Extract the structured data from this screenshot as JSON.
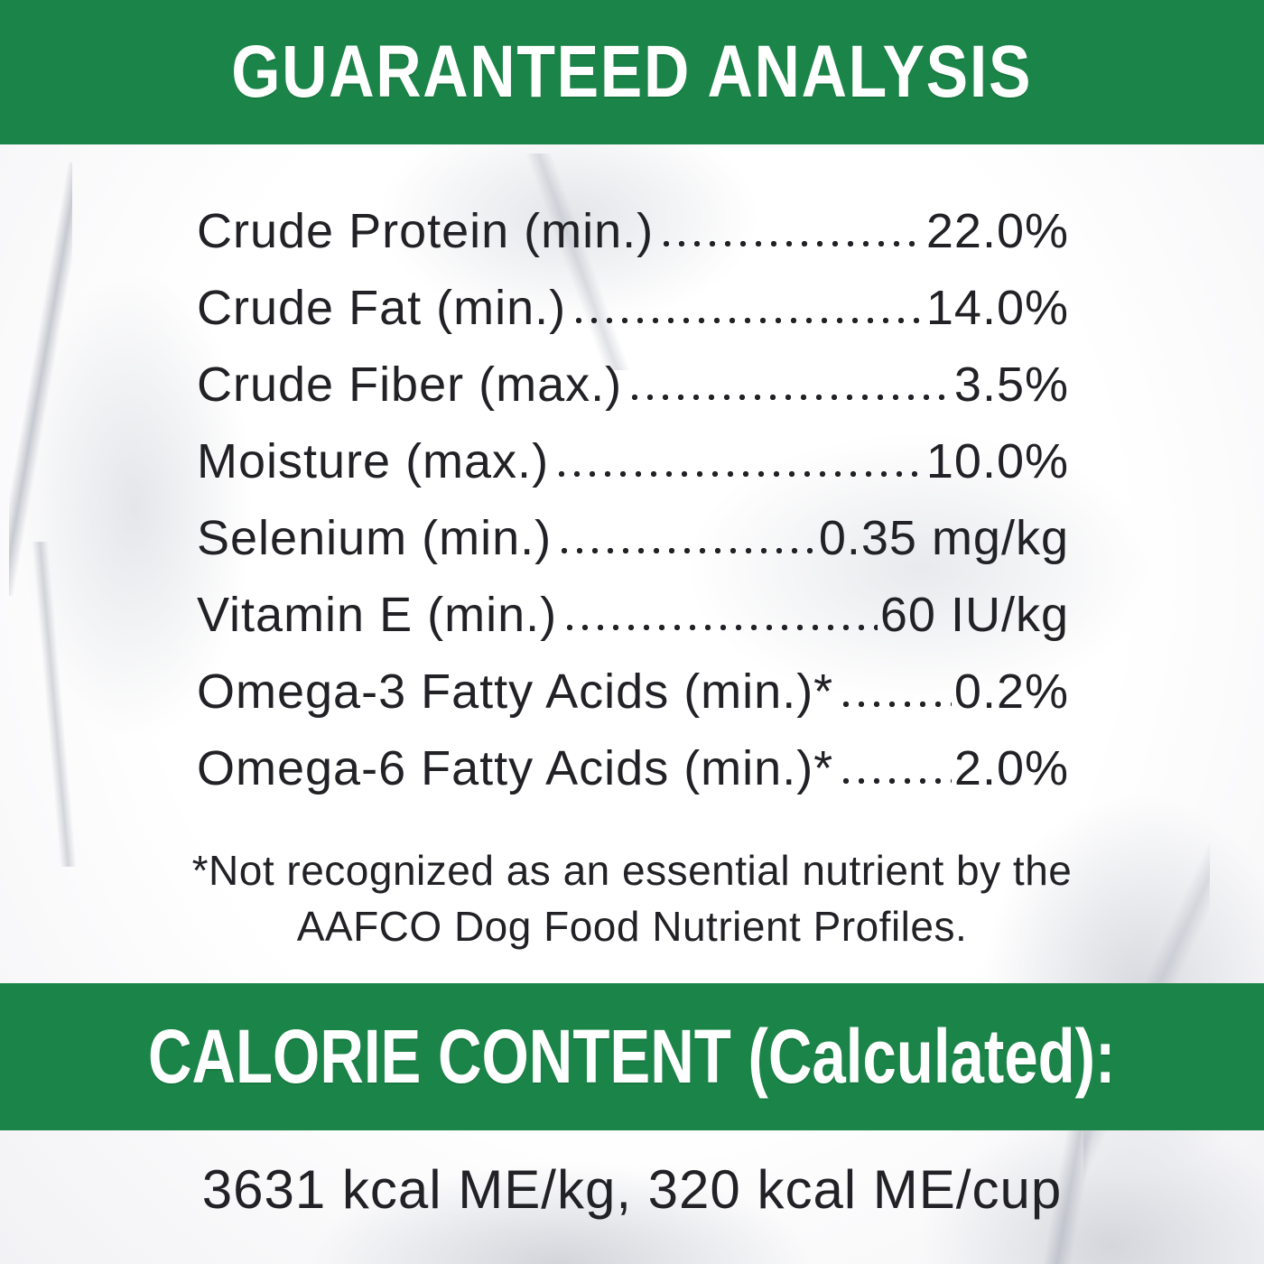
{
  "header": {
    "title": "GUARANTEED ANALYSIS"
  },
  "analysis": {
    "rows": [
      {
        "label": "Crude Protein (min.)",
        "value": "22.0%"
      },
      {
        "label": "Crude Fat (min.)",
        "value": "14.0%"
      },
      {
        "label": "Crude Fiber (max.)",
        "value": "3.5%"
      },
      {
        "label": "Moisture (max.)",
        "value": "10.0%"
      },
      {
        "label": "Selenium (min.)",
        "value": "0.35 mg/kg"
      },
      {
        "label": "Vitamin E (min.)",
        "value": "60 IU/kg"
      },
      {
        "label": "Omega-3 Fatty Acids (min.)*",
        "value": "0.2%"
      },
      {
        "label": "Omega-6 Fatty Acids (min.)*",
        "value": "2.0%"
      }
    ],
    "footnote": {
      "lines": [
        "*Not recognized as an essential nutrient by the",
        "AAFCO Dog Food Nutrient Profiles."
      ]
    }
  },
  "calorie": {
    "title": "CALORIE CONTENT (Calculated):",
    "value": "3631 kcal ME/kg, 320 kcal ME/cup"
  },
  "colors": {
    "accent_green": "#1b8549",
    "ink": "#212126",
    "background": "#fdfdfe"
  }
}
